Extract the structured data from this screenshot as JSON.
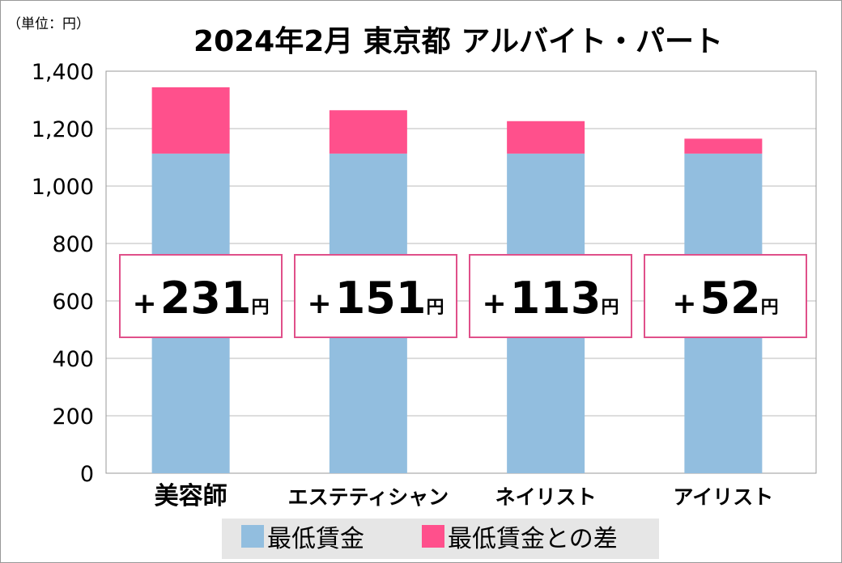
{
  "chart_data": {
    "type": "bar",
    "stacked": true,
    "title": "2024年2月 東京都 アルバイト・パート",
    "unit_label": "（単位：円）",
    "categories": [
      "美容師",
      "エステティシャン",
      "ネイリスト",
      "アイリスト"
    ],
    "series": [
      {
        "name": "最低賃金",
        "color": "#92bedf",
        "values": [
          1113,
          1113,
          1113,
          1113
        ]
      },
      {
        "name": "最低賃金との差",
        "color": "#ff508c",
        "values": [
          231,
          151,
          113,
          52
        ]
      }
    ],
    "annotations": [
      {
        "sign": "+",
        "value": "231",
        "unit": "円"
      },
      {
        "sign": "+",
        "value": "151",
        "unit": "円"
      },
      {
        "sign": "+",
        "value": "113",
        "unit": "円"
      },
      {
        "sign": "+",
        "value": "52",
        "unit": "円"
      }
    ],
    "yticks": [
      "0",
      "200",
      "400",
      "600",
      "800",
      "1,000",
      "1,200",
      "1,400"
    ],
    "ylim": [
      0,
      1400
    ],
    "grid": true,
    "legend_placement": "bottom",
    "legend_background": "#e6e6e6",
    "annotation_border": "#e0508a"
  }
}
